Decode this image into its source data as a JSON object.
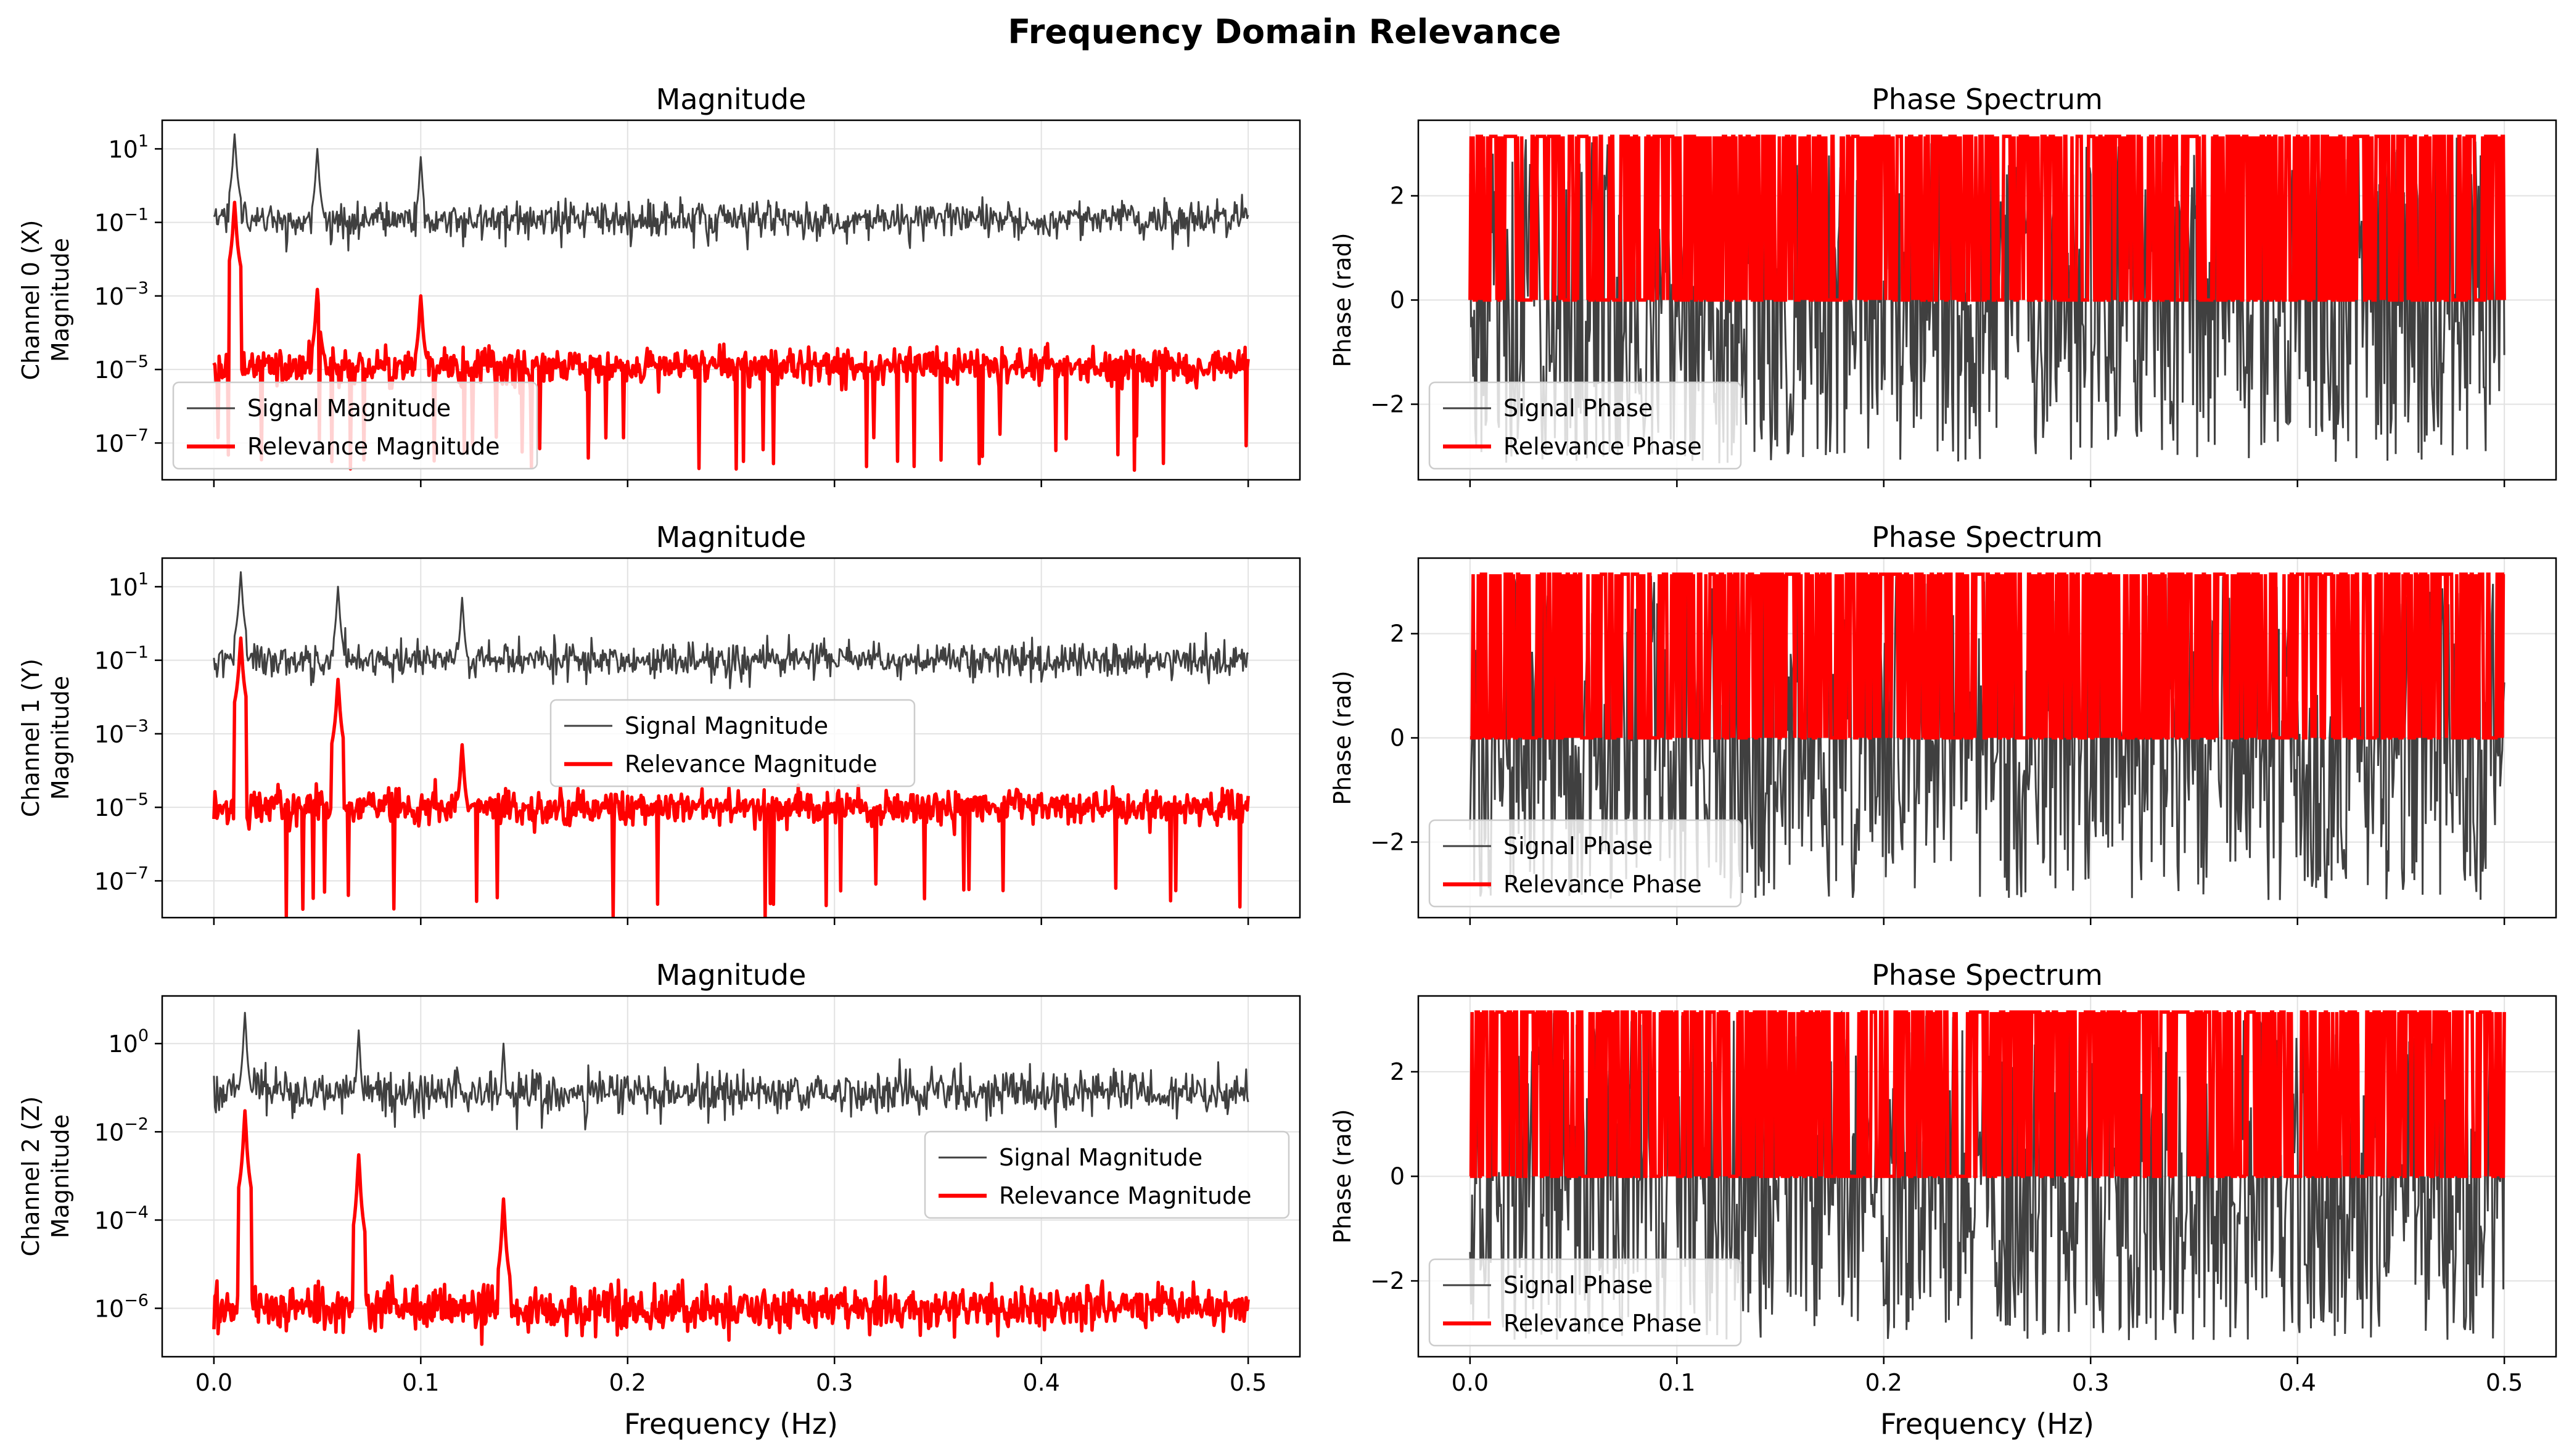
{
  "figure": {
    "title": "Frequency Domain Relevance"
  },
  "colors": {
    "signal": "#404040",
    "relevance": "#ff0000",
    "grid": "#e2e2e2",
    "axes": "#000000"
  },
  "chart_data": [
    {
      "type": "line",
      "title": "Magnitude",
      "ylabel": [
        "Channel 0 (X)",
        "Magnitude"
      ],
      "xlabel": "",
      "yscale": "log",
      "ylim": [
        1e-08,
        60
      ],
      "xlim": [
        -0.025,
        0.525
      ],
      "xticks": [
        0.0,
        0.1,
        0.2,
        0.3,
        0.4,
        0.5
      ],
      "xtick_labels": [],
      "yticks": [
        {
          "value": 10,
          "exp": "1"
        },
        {
          "value": 0.1,
          "exp": "−1"
        },
        {
          "value": 0.001,
          "exp": "−3"
        },
        {
          "value": 1e-05,
          "exp": "−5"
        },
        {
          "value": 1e-07,
          "exp": "−7"
        }
      ],
      "grid": true,
      "legend_position": "lower-left",
      "legend": [
        "Signal Magnitude",
        "Relevance Magnitude"
      ],
      "peaks_hz": [
        0.01,
        0.05,
        0.1
      ],
      "series": [
        {
          "name": "Signal Magnitude",
          "baseline": 0.12,
          "peak_values": [
            25,
            10,
            6
          ],
          "min": 0.015
        },
        {
          "name": "Relevance Magnitude",
          "baseline": 1.2e-05,
          "peak_values": [
            0.35,
            0.0015,
            0.001
          ],
          "min": 1.5e-08
        }
      ]
    },
    {
      "type": "line",
      "title": "Phase Spectrum",
      "ylabel": [
        "Phase (rad)"
      ],
      "xlabel": "",
      "yscale": "linear",
      "ylim": [
        -3.45,
        3.45
      ],
      "xlim": [
        -0.025,
        0.525
      ],
      "xticks": [
        0.0,
        0.1,
        0.2,
        0.3,
        0.4,
        0.5
      ],
      "xtick_labels": [],
      "yticks": [
        {
          "value": 2,
          "label": "2"
        },
        {
          "value": 0,
          "label": "0"
        },
        {
          "value": -2,
          "label": "−2"
        }
      ],
      "grid": true,
      "legend_position": "lower-left",
      "legend": [
        "Signal Phase",
        "Relevance Phase"
      ],
      "series": [
        {
          "name": "Signal Phase",
          "range": [
            -3.1416,
            3.1416
          ]
        },
        {
          "name": "Relevance Phase",
          "values": [
            0,
            3.1416
          ]
        }
      ]
    },
    {
      "type": "line",
      "title": "Magnitude",
      "ylabel": [
        "Channel 1 (Y)",
        "Magnitude"
      ],
      "xlabel": "",
      "yscale": "log",
      "ylim": [
        1e-08,
        60
      ],
      "xlim": [
        -0.025,
        0.525
      ],
      "xticks": [
        0.0,
        0.1,
        0.2,
        0.3,
        0.4,
        0.5
      ],
      "xtick_labels": [],
      "yticks": [
        {
          "value": 10,
          "exp": "1"
        },
        {
          "value": 0.1,
          "exp": "−1"
        },
        {
          "value": 0.001,
          "exp": "−3"
        },
        {
          "value": 1e-05,
          "exp": "−5"
        },
        {
          "value": 1e-07,
          "exp": "−7"
        }
      ],
      "grid": true,
      "legend_position": "center",
      "legend": [
        "Signal Magnitude",
        "Relevance Magnitude"
      ],
      "peaks_hz": [
        0.013,
        0.06,
        0.12
      ],
      "series": [
        {
          "name": "Signal Magnitude",
          "baseline": 0.1,
          "peak_values": [
            25,
            10,
            5
          ],
          "min": 0.02
        },
        {
          "name": "Relevance Magnitude",
          "baseline": 1e-05,
          "peak_values": [
            0.4,
            0.03,
            0.0005
          ],
          "min": 8e-09
        }
      ]
    },
    {
      "type": "line",
      "title": "Phase Spectrum",
      "ylabel": [
        "Phase (rad)"
      ],
      "xlabel": "",
      "yscale": "linear",
      "ylim": [
        -3.45,
        3.45
      ],
      "xlim": [
        -0.025,
        0.525
      ],
      "xticks": [
        0.0,
        0.1,
        0.2,
        0.3,
        0.4,
        0.5
      ],
      "xtick_labels": [],
      "yticks": [
        {
          "value": 2,
          "label": "2"
        },
        {
          "value": 0,
          "label": "0"
        },
        {
          "value": -2,
          "label": "−2"
        }
      ],
      "grid": true,
      "legend_position": "lower-left",
      "legend": [
        "Signal Phase",
        "Relevance Phase"
      ],
      "series": [
        {
          "name": "Signal Phase",
          "range": [
            -3.1416,
            3.1416
          ]
        },
        {
          "name": "Relevance Phase",
          "values": [
            0,
            3.1416
          ]
        }
      ]
    },
    {
      "type": "line",
      "title": "Magnitude",
      "ylabel": [
        "Channel 2 (Z)",
        "Magnitude"
      ],
      "xlabel": "Frequency (Hz)",
      "yscale": "log",
      "ylim": [
        8e-08,
        12
      ],
      "xlim": [
        -0.025,
        0.525
      ],
      "xticks": [
        0.0,
        0.1,
        0.2,
        0.3,
        0.4,
        0.5
      ],
      "xtick_labels": [
        "0.0",
        "0.1",
        "0.2",
        "0.3",
        "0.4",
        "0.5"
      ],
      "yticks": [
        {
          "value": 1,
          "exp": "0"
        },
        {
          "value": 0.01,
          "exp": "−2"
        },
        {
          "value": 0.0001,
          "exp": "−4"
        },
        {
          "value": 1e-06,
          "exp": "−6"
        }
      ],
      "grid": true,
      "legend_position": "center-right",
      "legend": [
        "Signal Magnitude",
        "Relevance Magnitude"
      ],
      "peaks_hz": [
        0.015,
        0.07,
        0.14
      ],
      "series": [
        {
          "name": "Signal Magnitude",
          "baseline": 0.08,
          "peak_values": [
            5,
            2,
            1
          ],
          "min": 0.01
        },
        {
          "name": "Relevance Magnitude",
          "baseline": 1e-06,
          "peak_values": [
            0.03,
            0.003,
            0.0003
          ],
          "min": 2e-07
        }
      ]
    },
    {
      "type": "line",
      "title": "Phase Spectrum",
      "ylabel": [
        "Phase (rad)"
      ],
      "xlabel": "Frequency (Hz)",
      "yscale": "linear",
      "ylim": [
        -3.45,
        3.45
      ],
      "xlim": [
        -0.025,
        0.525
      ],
      "xticks": [
        0.0,
        0.1,
        0.2,
        0.3,
        0.4,
        0.5
      ],
      "xtick_labels": [
        "0.0",
        "0.1",
        "0.2",
        "0.3",
        "0.4",
        "0.5"
      ],
      "yticks": [
        {
          "value": 2,
          "label": "2"
        },
        {
          "value": 0,
          "label": "0"
        },
        {
          "value": -2,
          "label": "−2"
        }
      ],
      "grid": true,
      "legend_position": "lower-left",
      "legend": [
        "Signal Phase",
        "Relevance Phase"
      ],
      "series": [
        {
          "name": "Signal Phase",
          "range": [
            -3.1416,
            3.1416
          ]
        },
        {
          "name": "Relevance Phase",
          "values": [
            0,
            3.1416
          ]
        }
      ]
    }
  ]
}
